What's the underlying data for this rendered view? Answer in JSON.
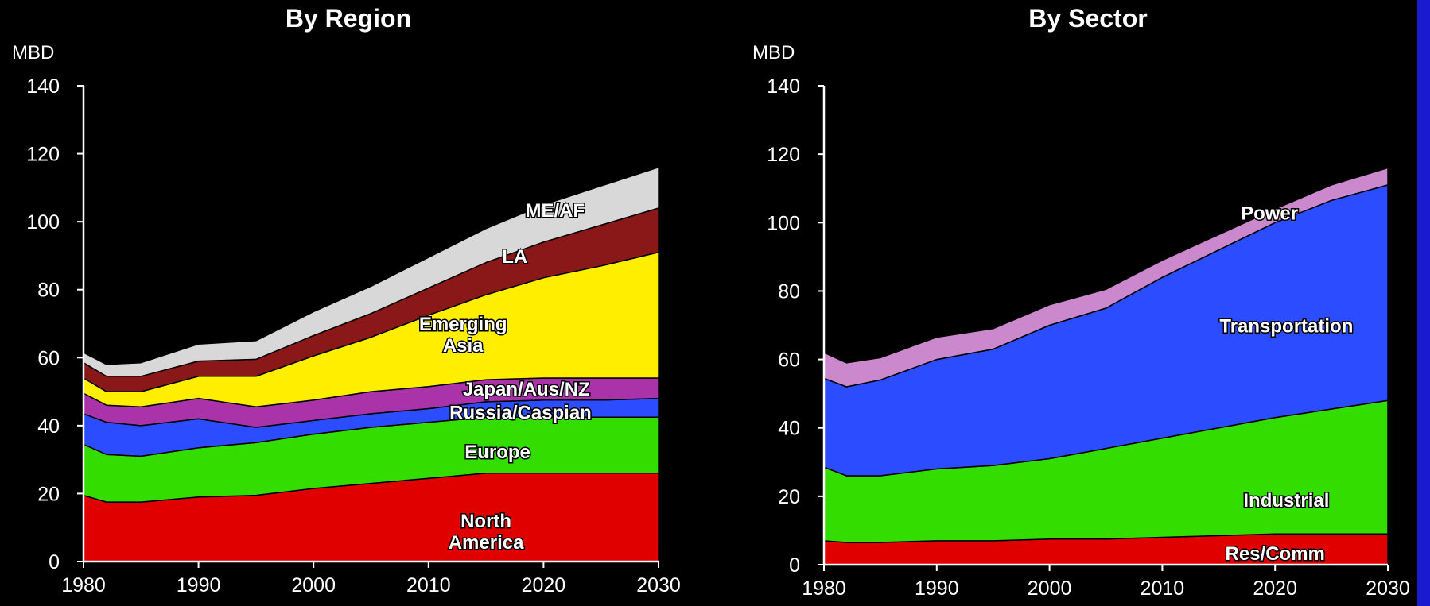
{
  "page": {
    "edge_color": "#1a1ad0"
  },
  "chart_data": [
    {
      "type": "area",
      "stacked": true,
      "title": "By Region",
      "ylabel": "MBD",
      "xlim": [
        1980,
        2030
      ],
      "ylim": [
        0,
        140
      ],
      "x_ticks": [
        1980,
        1990,
        2000,
        2010,
        2020,
        2030
      ],
      "y_ticks": [
        0,
        20,
        40,
        60,
        80,
        100,
        120,
        140
      ],
      "x": [
        1980,
        1982,
        1985,
        1990,
        1995,
        2000,
        2005,
        2010,
        2015,
        2020,
        2025,
        2030
      ],
      "series": [
        {
          "name": "North America",
          "label_lines": [
            "North",
            "America"
          ],
          "color": "#e00000",
          "values": [
            19.5,
            17.5,
            17.5,
            19,
            19.5,
            21.5,
            23,
            24.5,
            26,
            26,
            26,
            26
          ]
        },
        {
          "name": "Europe",
          "label_lines": [
            "Europe"
          ],
          "color": "#33dd00",
          "values": [
            15,
            14,
            13.5,
            14.5,
            15.5,
            16,
            16.5,
            16.5,
            16.5,
            16.5,
            16.5,
            16.5
          ]
        },
        {
          "name": "Russia/Caspian",
          "label_lines": [
            "Russia/Caspian"
          ],
          "color": "#2c4cff",
          "values": [
            9,
            9.5,
            9,
            8.5,
            4.5,
            4,
            4,
            4,
            4.5,
            5,
            5,
            5.5
          ]
        },
        {
          "name": "Japan/Aus/NZ",
          "label_lines": [
            "Japan/Aus/NZ"
          ],
          "color": "#aa33aa",
          "values": [
            6,
            5,
            5.5,
            6,
            6,
            6,
            6.5,
            6.5,
            6.5,
            6.5,
            6.5,
            6
          ]
        },
        {
          "name": "Emerging Asia",
          "label_lines": [
            "Emerging",
            "Asia"
          ],
          "color": "#ffee00",
          "values": [
            4.5,
            4,
            4.5,
            6.5,
            9,
            13,
            16,
            21,
            25,
            29.5,
            33,
            37
          ]
        },
        {
          "name": "LA",
          "label_lines": [
            "LA"
          ],
          "color": "#8b1818",
          "values": [
            4.5,
            4.5,
            4.5,
            4.5,
            5,
            6,
            7,
            8,
            9.5,
            10.5,
            12,
            13
          ]
        },
        {
          "name": "ME/AF",
          "label_lines": [
            "ME/AF"
          ],
          "color": "#d8d8d8",
          "values": [
            3,
            3.5,
            4,
            5,
            5.5,
            7,
            8,
            9,
            10,
            11,
            11.5,
            12
          ]
        }
      ]
    },
    {
      "type": "area",
      "stacked": true,
      "title": "By Sector",
      "ylabel": "MBD",
      "xlim": [
        1980,
        2030
      ],
      "ylim": [
        0,
        140
      ],
      "x_ticks": [
        1980,
        1990,
        2000,
        2010,
        2020,
        2030
      ],
      "y_ticks": [
        0,
        20,
        40,
        60,
        80,
        100,
        120,
        140
      ],
      "x": [
        1980,
        1982,
        1985,
        1990,
        1995,
        2000,
        2005,
        2010,
        2015,
        2020,
        2025,
        2030
      ],
      "series": [
        {
          "name": "Res/Comm",
          "label_lines": [
            "Res/Comm"
          ],
          "color": "#e00000",
          "values": [
            7,
            6.5,
            6.5,
            7,
            7,
            7.5,
            7.5,
            8,
            8.5,
            9,
            9,
            9
          ]
        },
        {
          "name": "Industrial",
          "label_lines": [
            "Industrial"
          ],
          "color": "#33dd00",
          "values": [
            21.5,
            19.5,
            19.5,
            21,
            22,
            23.5,
            26.5,
            29,
            31.5,
            34,
            36.5,
            39
          ]
        },
        {
          "name": "Transportation",
          "label_lines": [
            "Transportation"
          ],
          "color": "#2c4cff",
          "values": [
            26,
            26,
            28,
            32,
            34,
            39,
            41,
            47,
            52,
            57,
            61,
            63
          ]
        },
        {
          "name": "Power",
          "label_lines": [
            "Power"
          ],
          "color": "#cc88cc",
          "values": [
            7.5,
            7,
            6.5,
            6.5,
            6,
            6,
            5.5,
            5,
            4.5,
            4,
            4.5,
            5
          ]
        }
      ]
    }
  ]
}
